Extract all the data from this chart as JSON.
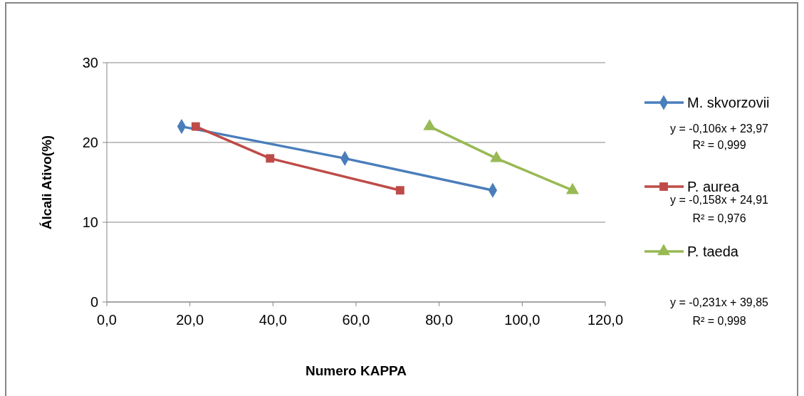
{
  "chart_data": {
    "type": "line",
    "xlabel": "Numero KAPPA",
    "ylabel": "Álcali Ativo(%)",
    "xlim": [
      0,
      120
    ],
    "xticks": [
      {
        "value": 0,
        "label": "0,0"
      },
      {
        "value": 20,
        "label": "20,0"
      },
      {
        "value": 40,
        "label": "40,0"
      },
      {
        "value": 60,
        "label": "60,0"
      },
      {
        "value": 80,
        "label": "80,0"
      },
      {
        "value": 100,
        "label": "100,0"
      },
      {
        "value": 120,
        "label": "120,0"
      }
    ],
    "ylim": [
      0,
      30
    ],
    "yticks": [
      0,
      10,
      20,
      30
    ],
    "grid": "y",
    "legend": "right",
    "line_style": "solid",
    "series": [
      {
        "name": "M. skvorzovii",
        "color": "#4a7ebb",
        "marker": "diamond",
        "x": [
          18.0,
          57.3,
          92.9
        ],
        "values": [
          22,
          18,
          14
        ]
      },
      {
        "name": "P. aurea",
        "color": "#be4b48",
        "marker": "square",
        "x": [
          21.4,
          39.3,
          70.6
        ],
        "values": [
          22,
          18,
          14
        ]
      },
      {
        "name": "P. taeda",
        "color": "#98b954",
        "marker": "triangle",
        "x": [
          77.7,
          93.8,
          112.1
        ],
        "values": [
          22,
          18,
          14
        ]
      }
    ],
    "annotations": [
      "y = -0,106x + 23,97",
      "R² = 0,999",
      "y = -0,158x + 24,91",
      "R² = 0,976",
      "y = -0,231x + 39,85",
      "R² = 0,998"
    ]
  }
}
